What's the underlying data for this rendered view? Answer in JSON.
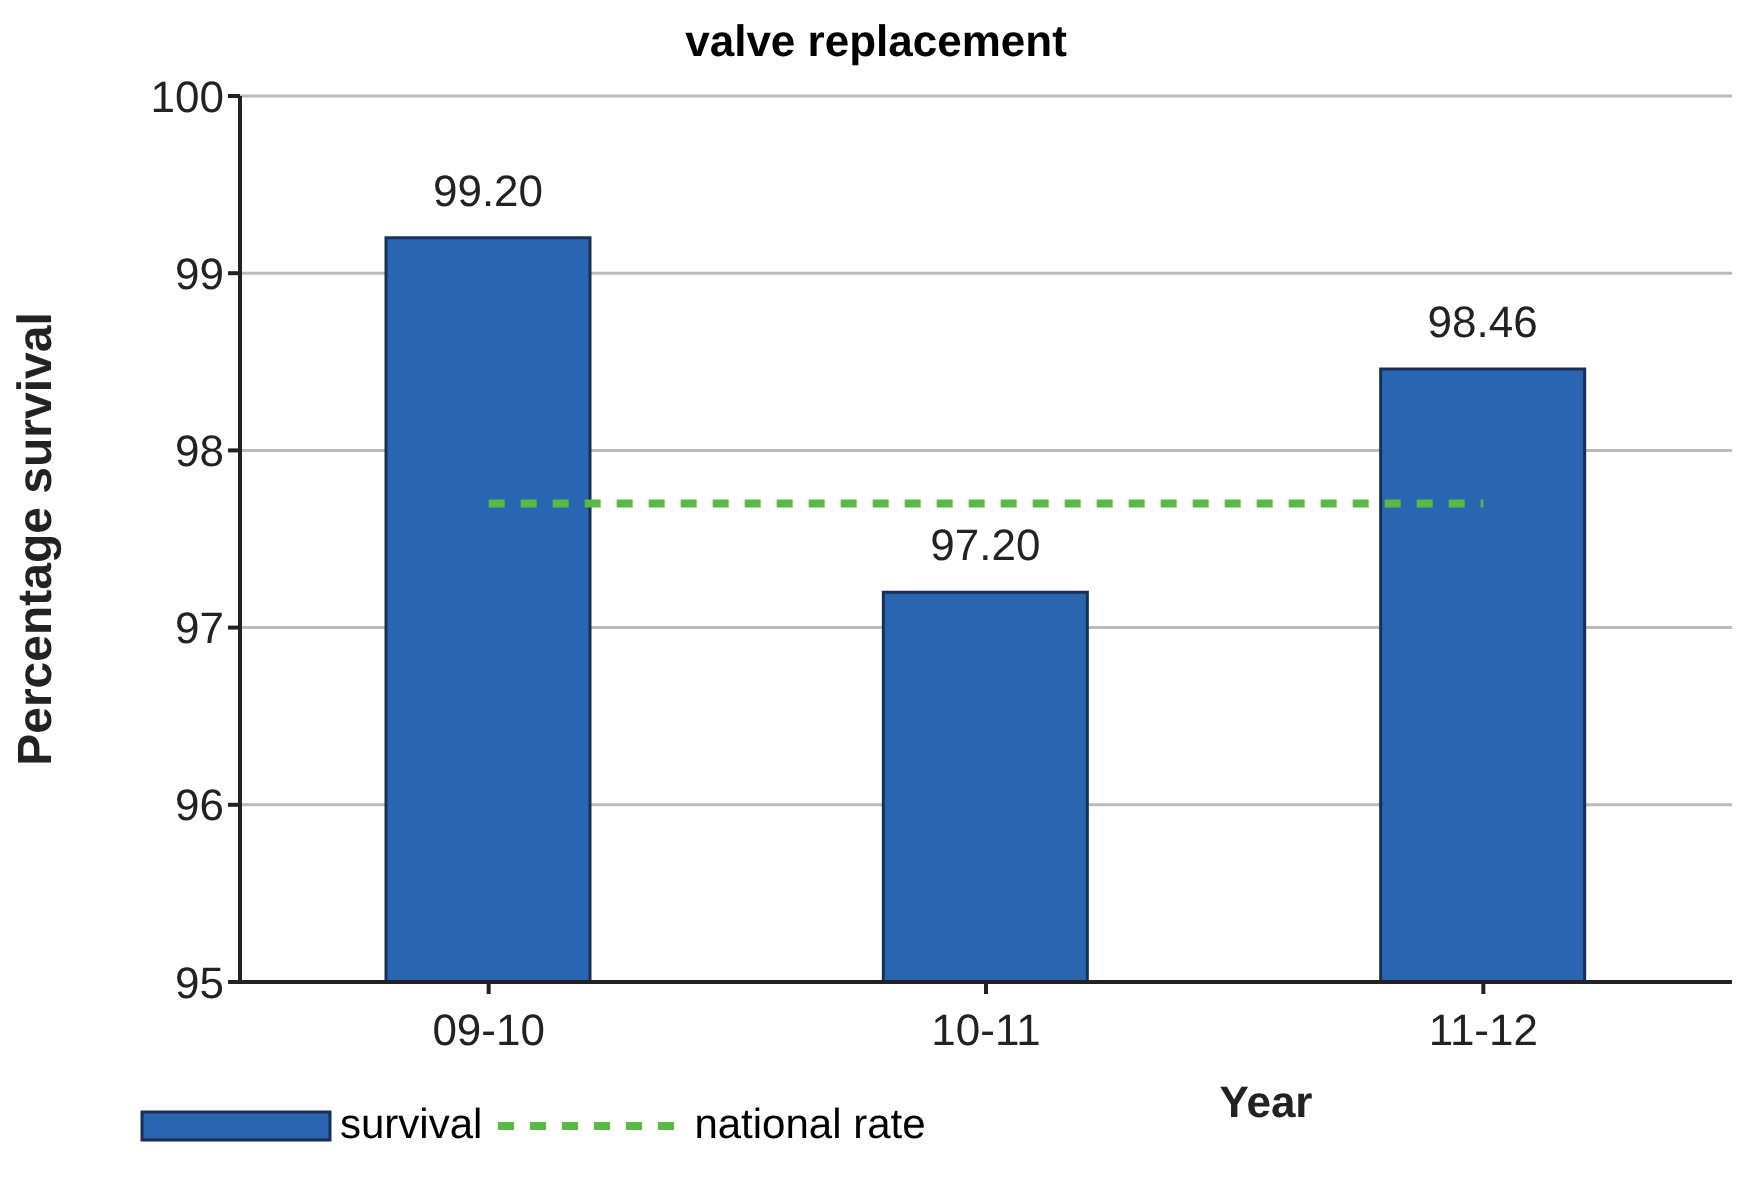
{
  "chart_data": {
    "type": "bar",
    "title": "valve replacement",
    "xlabel": "Year",
    "ylabel": "Percentage survival",
    "categories": [
      "09-10",
      "10-11",
      "11-12"
    ],
    "series": [
      {
        "name": "survival",
        "color": "#2a66b0",
        "values": [
          99.2,
          97.2,
          98.46
        ],
        "value_labels": [
          "99.20",
          "97.20",
          "98.46"
        ]
      },
      {
        "name": "national rate",
        "type": "line",
        "color": "#5ab946",
        "values": [
          97.7,
          97.7,
          97.7
        ],
        "line_style": "dashed",
        "marker": "none"
      }
    ],
    "ylim": [
      95,
      100
    ],
    "yticks": [
      95,
      96,
      97,
      98,
      99,
      100
    ],
    "grid": "y",
    "legend": "bottom left"
  }
}
